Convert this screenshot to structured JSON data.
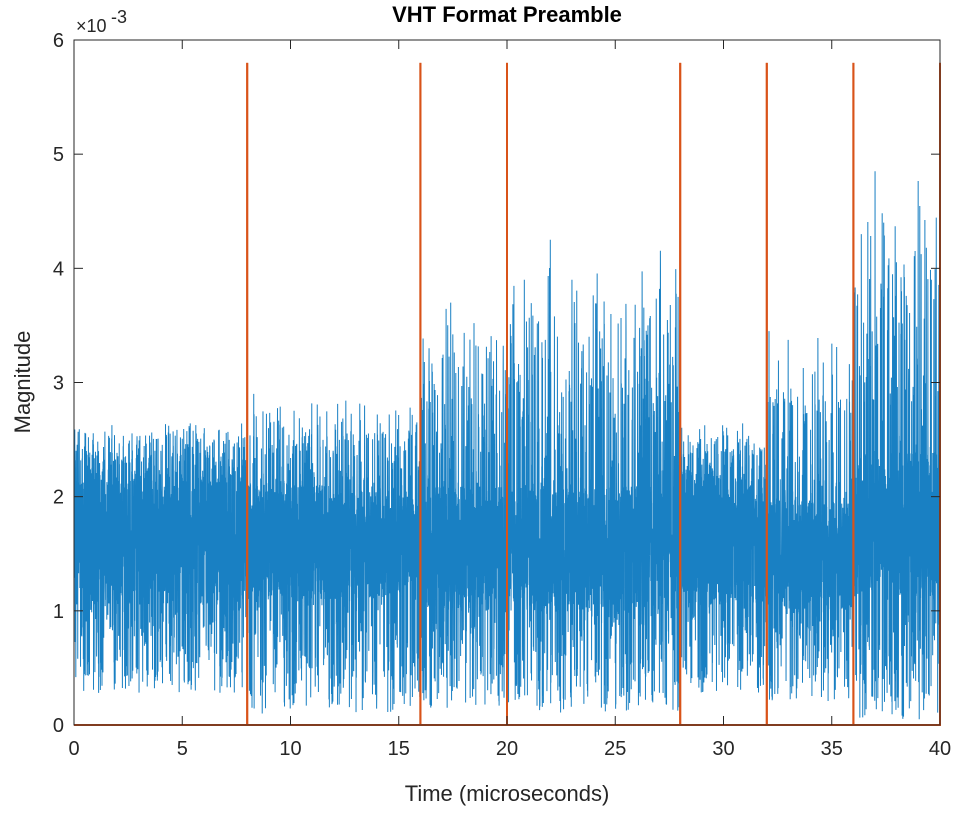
{
  "chart_data": {
    "type": "line",
    "title": "VHT Format Preamble",
    "xlabel": "Time (microseconds)",
    "ylabel": "Magnitude",
    "xlim": [
      0,
      40
    ],
    "ylim": [
      0,
      0.006
    ],
    "y_exponent_label": {
      "base": "×10",
      "exponent": "-3"
    },
    "x_ticks": [
      0,
      5,
      10,
      15,
      20,
      25,
      30,
      35,
      40
    ],
    "x_tick_labels": [
      "0",
      "5",
      "10",
      "15",
      "20",
      "25",
      "30",
      "35",
      "40"
    ],
    "y_ticks": [
      0,
      0.001,
      0.002,
      0.003,
      0.004,
      0.005,
      0.006
    ],
    "y_tick_labels": [
      "0",
      "1",
      "2",
      "3",
      "4",
      "5",
      "6"
    ],
    "grid": false,
    "legend": "none",
    "series": [
      {
        "color": "#0072BD",
        "kind": "waveform",
        "segments": [
          {
            "x_start": 0,
            "x_end": 8,
            "envelope_max": 0.00268,
            "envelope_min": 0.00028,
            "dense_band": [
              0.00105,
              0.0022
            ],
            "period": 0.8
          },
          {
            "x_start": 8,
            "x_end": 16,
            "envelope_max": 0.0029,
            "envelope_min": 0.0001,
            "dense_band": [
              0.0011,
              0.0021
            ],
            "period": 0.8
          },
          {
            "x_start": 16,
            "x_end": 20,
            "envelope_max": 0.0037,
            "envelope_min": 0.00015,
            "dense_band": [
              0.001,
              0.0021
            ],
            "period": 0.4
          },
          {
            "x_start": 20,
            "x_end": 28,
            "envelope_max": 0.00425,
            "envelope_min": 0.0001,
            "dense_band": [
              0.001,
              0.0021
            ],
            "period": 0.4
          },
          {
            "x_start": 28,
            "x_end": 32,
            "envelope_max": 0.00268,
            "envelope_min": 0.00028,
            "dense_band": [
              0.00105,
              0.0022
            ],
            "period": 0.8
          },
          {
            "x_start": 32,
            "x_end": 36,
            "envelope_max": 0.0035,
            "envelope_min": 0.0002,
            "dense_band": [
              0.001,
              0.002
            ],
            "period": 0.4
          },
          {
            "x_start": 36,
            "x_end": 40,
            "envelope_max": 0.00485,
            "envelope_min": 5e-05,
            "dense_band": [
              0.0011,
              0.0024
            ],
            "period": 0.2
          }
        ],
        "peaks": [
          {
            "x": 8.3,
            "y": 0.0029
          },
          {
            "x": 16.4,
            "y": 0.0033
          },
          {
            "x": 17.4,
            "y": 0.0037
          },
          {
            "x": 20.8,
            "y": 0.0039
          },
          {
            "x": 22.0,
            "y": 0.00425
          },
          {
            "x": 23.0,
            "y": 0.0039
          },
          {
            "x": 24.8,
            "y": 0.0036
          },
          {
            "x": 26.2,
            "y": 0.0033
          },
          {
            "x": 27.9,
            "y": 0.00375
          },
          {
            "x": 32.1,
            "y": 0.00345
          },
          {
            "x": 37.0,
            "y": 0.00485
          },
          {
            "x": 37.4,
            "y": 0.0044
          },
          {
            "x": 39.6,
            "y": 0.0039
          }
        ]
      },
      {
        "color": "#D95319",
        "kind": "field-boundary-pulses",
        "baseline": 0,
        "pulse_height": 0.0058,
        "x_markers": [
          0,
          8,
          16,
          20,
          28,
          32,
          36,
          40
        ]
      }
    ]
  }
}
